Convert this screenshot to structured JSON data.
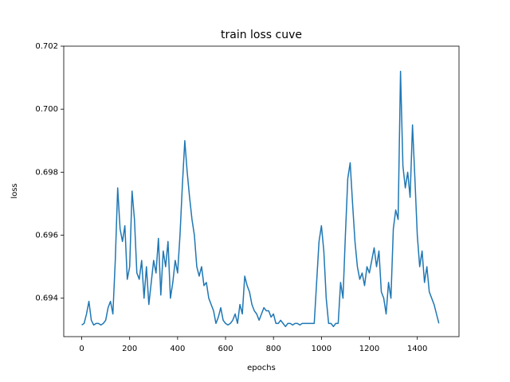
{
  "chart_data": {
    "type": "line",
    "title": "train loss cuve",
    "x_label": "epochs",
    "y_label": "loss",
    "x": [
      0,
      10,
      20,
      30,
      40,
      50,
      60,
      70,
      80,
      90,
      100,
      110,
      120,
      130,
      140,
      150,
      160,
      170,
      180,
      190,
      200,
      210,
      220,
      230,
      240,
      250,
      260,
      270,
      280,
      290,
      300,
      310,
      320,
      330,
      340,
      350,
      360,
      370,
      380,
      390,
      400,
      410,
      420,
      430,
      440,
      450,
      460,
      470,
      480,
      490,
      500,
      510,
      520,
      530,
      540,
      550,
      560,
      570,
      580,
      590,
      600,
      610,
      620,
      630,
      640,
      650,
      660,
      670,
      680,
      690,
      700,
      710,
      720,
      730,
      740,
      750,
      760,
      770,
      780,
      790,
      800,
      810,
      820,
      830,
      840,
      850,
      860,
      870,
      880,
      890,
      900,
      910,
      920,
      930,
      940,
      950,
      960,
      970,
      980,
      990,
      1000,
      1010,
      1020,
      1030,
      1040,
      1050,
      1060,
      1070,
      1080,
      1090,
      1100,
      1110,
      1120,
      1130,
      1140,
      1150,
      1160,
      1170,
      1180,
      1190,
      1200,
      1210,
      1220,
      1230,
      1240,
      1250,
      1260,
      1270,
      1280,
      1290,
      1300,
      1310,
      1320,
      1330,
      1340,
      1350,
      1360,
      1370,
      1380,
      1390,
      1400,
      1410,
      1420,
      1430,
      1440,
      1450,
      1460,
      1470,
      1480,
      1490
    ],
    "series": [
      {
        "color": "#1f77b4",
        "values": [
          0.69315,
          0.6932,
          0.6935,
          0.6939,
          0.6933,
          0.69315,
          0.6932,
          0.6932,
          0.69315,
          0.6932,
          0.6933,
          0.6937,
          0.6939,
          0.6935,
          0.6952,
          0.6975,
          0.6962,
          0.6958,
          0.6963,
          0.6946,
          0.695,
          0.6974,
          0.6965,
          0.6948,
          0.6946,
          0.6952,
          0.694,
          0.695,
          0.6938,
          0.6945,
          0.6952,
          0.6948,
          0.6959,
          0.6941,
          0.6955,
          0.695,
          0.6958,
          0.694,
          0.6945,
          0.6952,
          0.6948,
          0.696,
          0.6976,
          0.699,
          0.698,
          0.6972,
          0.6965,
          0.696,
          0.695,
          0.6947,
          0.695,
          0.6944,
          0.6945,
          0.694,
          0.6938,
          0.6936,
          0.6932,
          0.6934,
          0.6937,
          0.6933,
          0.6932,
          0.69315,
          0.6932,
          0.6933,
          0.6935,
          0.6932,
          0.6938,
          0.6935,
          0.6947,
          0.6944,
          0.6942,
          0.6938,
          0.6936,
          0.6935,
          0.6933,
          0.6935,
          0.6937,
          0.6936,
          0.6936,
          0.6934,
          0.6935,
          0.6932,
          0.6932,
          0.6933,
          0.6932,
          0.6931,
          0.6932,
          0.6932,
          0.69315,
          0.6932,
          0.6932,
          0.69315,
          0.6932,
          0.6932,
          0.6932,
          0.6932,
          0.6932,
          0.6932,
          0.6945,
          0.6958,
          0.6963,
          0.6955,
          0.694,
          0.6932,
          0.6932,
          0.6931,
          0.6932,
          0.6932,
          0.6945,
          0.694,
          0.696,
          0.6978,
          0.6983,
          0.697,
          0.6958,
          0.695,
          0.6946,
          0.6948,
          0.6944,
          0.695,
          0.6948,
          0.6952,
          0.6956,
          0.695,
          0.6955,
          0.6942,
          0.694,
          0.6935,
          0.6945,
          0.694,
          0.6962,
          0.6968,
          0.6965,
          0.7012,
          0.6982,
          0.6975,
          0.698,
          0.6972,
          0.6995,
          0.6978,
          0.696,
          0.695,
          0.6955,
          0.6945,
          0.695,
          0.6942,
          0.694,
          0.6938,
          0.6935,
          0.6932
        ]
      }
    ],
    "xlim": [
      -75,
      1574
    ],
    "ylim": [
      0.69278,
      0.702
    ],
    "xticks": [
      0,
      200,
      400,
      600,
      800,
      1000,
      1200,
      1400
    ],
    "yticks": [
      0.694,
      0.696,
      0.698,
      {
        "value": 0.7,
        "label": "0.700"
      },
      0.702
    ]
  }
}
